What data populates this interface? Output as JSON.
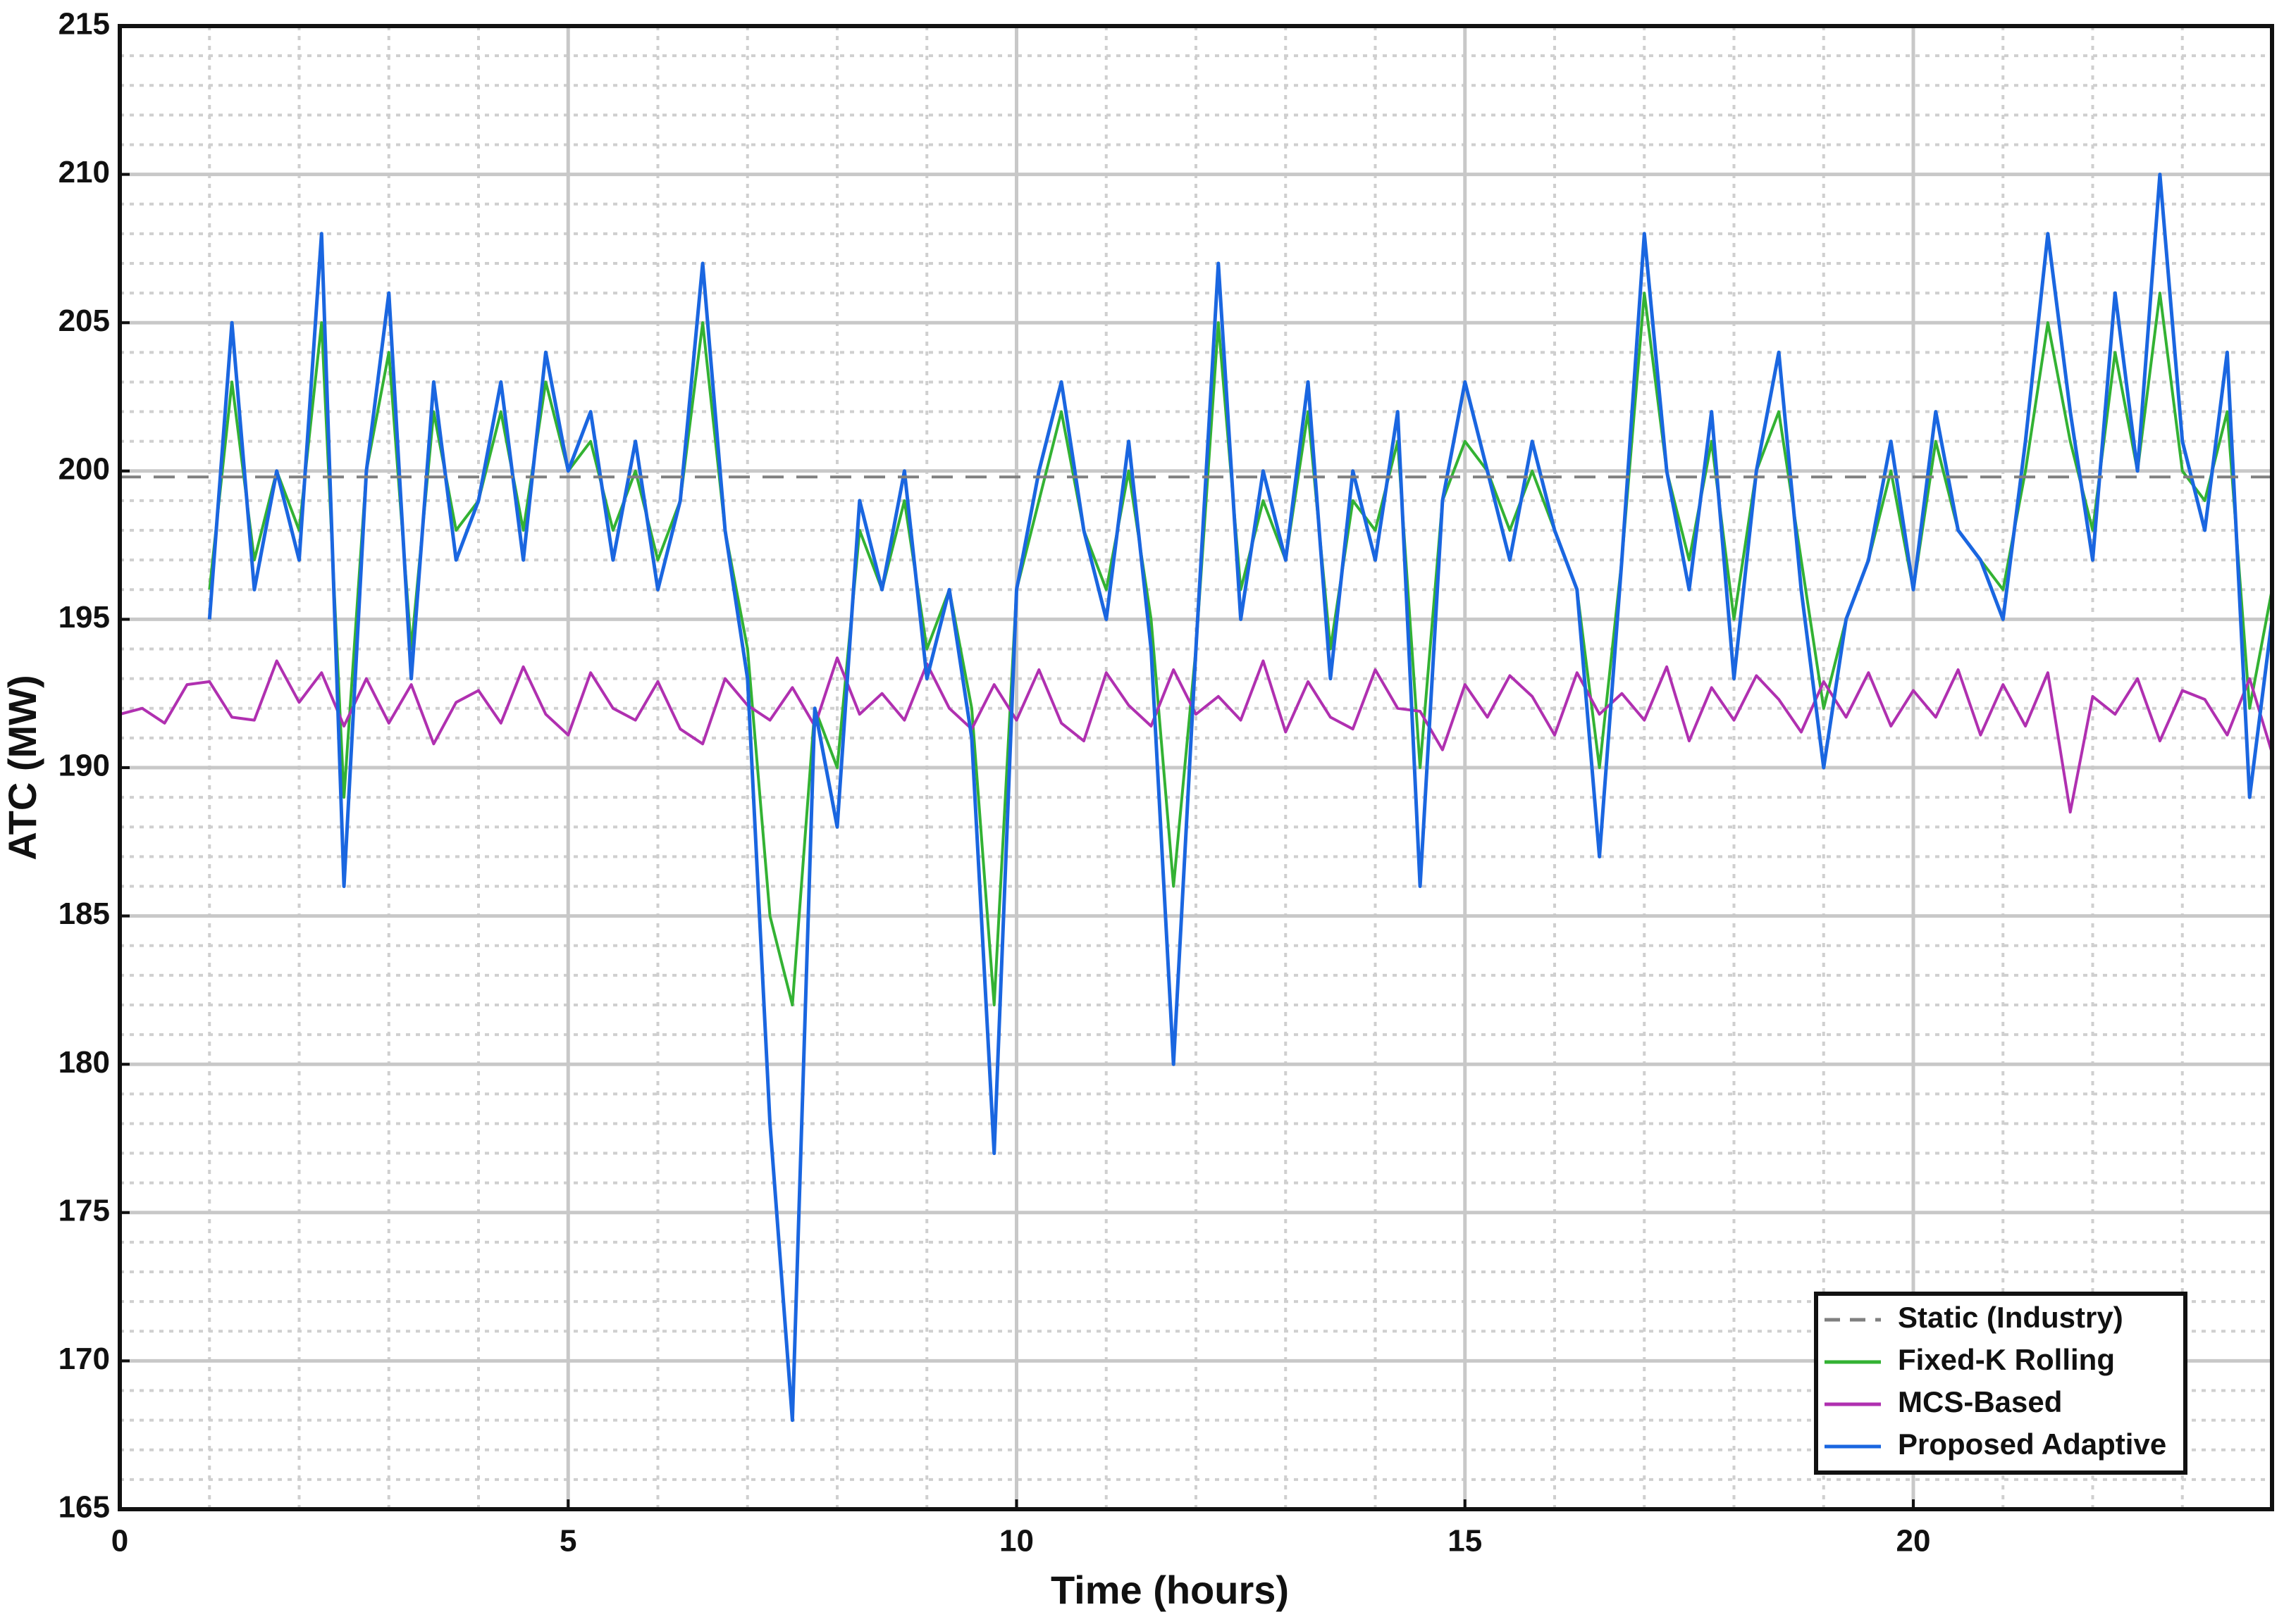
{
  "chart_data": {
    "type": "line",
    "xlabel": "Time (hours)",
    "ylabel": "ATC (MW)",
    "xlim": [
      0,
      24
    ],
    "ylim": [
      165,
      215
    ],
    "xticks": [
      0,
      5,
      10,
      15,
      20
    ],
    "yticks": [
      165,
      170,
      175,
      180,
      185,
      190,
      195,
      200,
      205,
      210,
      215
    ],
    "grid": true,
    "minor_grid": {
      "x": 1,
      "y": 1
    },
    "legend": "lower right",
    "x": [
      0,
      0.25,
      0.5,
      0.75,
      1,
      1.25,
      1.5,
      1.75,
      2,
      2.25,
      2.5,
      2.75,
      3,
      3.25,
      3.5,
      3.75,
      4,
      4.25,
      4.5,
      4.75,
      5,
      5.25,
      5.5,
      5.75,
      6,
      6.25,
      6.5,
      6.75,
      7,
      7.25,
      7.5,
      7.75,
      8,
      8.25,
      8.5,
      8.75,
      9,
      9.25,
      9.5,
      9.75,
      10,
      10.25,
      10.5,
      10.75,
      11,
      11.25,
      11.5,
      11.75,
      12,
      12.25,
      12.5,
      12.75,
      13,
      13.25,
      13.5,
      13.75,
      14,
      14.25,
      14.5,
      14.75,
      15,
      15.25,
      15.5,
      15.75,
      16,
      16.25,
      16.5,
      16.75,
      17,
      17.25,
      17.5,
      17.75,
      18,
      18.25,
      18.5,
      18.75,
      19,
      19.25,
      19.5,
      19.75,
      20,
      20.25,
      20.5,
      20.75,
      21,
      21.25,
      21.5,
      21.75,
      22,
      22.25,
      22.5,
      22.75,
      23,
      23.25,
      23.5,
      23.75,
      24
    ],
    "series": [
      {
        "name": "Static (Industry)",
        "color": "#808080",
        "dashed": true,
        "x": [
          0,
          24
        ],
        "values": [
          199.8,
          199.8
        ]
      },
      {
        "name": "Fixed-K Rolling",
        "color": "#33b233",
        "values": [
          null,
          null,
          null,
          null,
          196,
          203,
          197,
          200,
          198,
          205,
          189,
          200,
          204,
          194,
          202,
          198,
          199,
          202,
          198,
          203,
          200,
          201,
          198,
          200,
          197,
          199,
          205,
          198,
          194,
          185,
          182,
          192,
          190,
          198,
          196,
          199,
          194,
          196,
          192,
          182,
          196,
          199,
          202,
          198,
          196,
          200,
          195,
          186,
          194,
          205,
          196,
          199,
          197,
          202,
          194,
          199,
          198,
          201,
          190,
          199,
          201,
          200,
          198,
          200,
          198,
          196,
          190,
          197,
          206,
          200,
          197,
          201,
          195,
          200,
          202,
          197,
          192,
          195,
          197,
          200,
          196,
          201,
          198,
          197,
          196,
          200,
          205,
          201,
          198,
          204,
          200,
          206,
          200,
          199,
          202,
          192,
          196
        ]
      },
      {
        "name": "MCS-Based",
        "color": "#b030b0",
        "values": [
          191.8,
          192,
          191.5,
          192.8,
          192.9,
          191.7,
          191.6,
          193.6,
          192.2,
          193.2,
          191.4,
          193,
          191.5,
          192.8,
          190.8,
          192.2,
          192.6,
          191.5,
          193.4,
          191.8,
          191.1,
          193.2,
          192,
          191.6,
          192.9,
          191.3,
          190.8,
          193,
          192.1,
          191.6,
          192.7,
          191.4,
          193.7,
          191.8,
          192.5,
          191.6,
          193.5,
          192,
          191.3,
          192.8,
          191.6,
          193.3,
          191.5,
          190.9,
          193.2,
          192.1,
          191.4,
          193.3,
          191.8,
          192.4,
          191.6,
          193.6,
          191.2,
          192.9,
          191.7,
          191.3,
          193.3,
          192,
          191.9,
          190.6,
          192.8,
          191.7,
          193.1,
          192.4,
          191.1,
          193.2,
          191.8,
          192.5,
          191.6,
          193.4,
          190.9,
          192.7,
          191.6,
          193.1,
          192.3,
          191.2,
          192.9,
          191.7,
          193.2,
          191.4,
          192.6,
          191.7,
          193.3,
          191.1,
          192.8,
          191.4,
          193.2,
          188.5,
          192.4,
          191.8,
          193,
          190.9,
          192.6,
          192.3,
          191.1,
          193,
          190.5
        ]
      },
      {
        "name": "Proposed Adaptive",
        "color": "#1a66e0",
        "width": 5,
        "values": [
          null,
          null,
          null,
          null,
          195,
          205,
          196,
          200,
          197,
          208,
          186,
          200,
          206,
          193,
          203,
          197,
          199,
          203,
          197,
          204,
          200,
          202,
          197,
          201,
          196,
          199,
          207,
          198,
          193,
          178,
          168,
          192,
          188,
          199,
          196,
          200,
          193,
          196,
          191,
          177,
          196,
          200,
          203,
          198,
          195,
          201,
          194,
          180,
          194,
          207,
          195,
          200,
          197,
          203,
          193,
          200,
          197,
          202,
          186,
          199,
          203,
          200,
          197,
          201,
          198,
          196,
          187,
          197,
          208,
          200,
          196,
          202,
          193,
          200,
          204,
          196,
          190,
          195,
          197,
          201,
          196,
          202,
          198,
          197,
          195,
          201,
          208,
          202,
          197,
          206,
          200,
          210,
          201,
          198,
          204,
          189,
          195
        ]
      }
    ]
  }
}
